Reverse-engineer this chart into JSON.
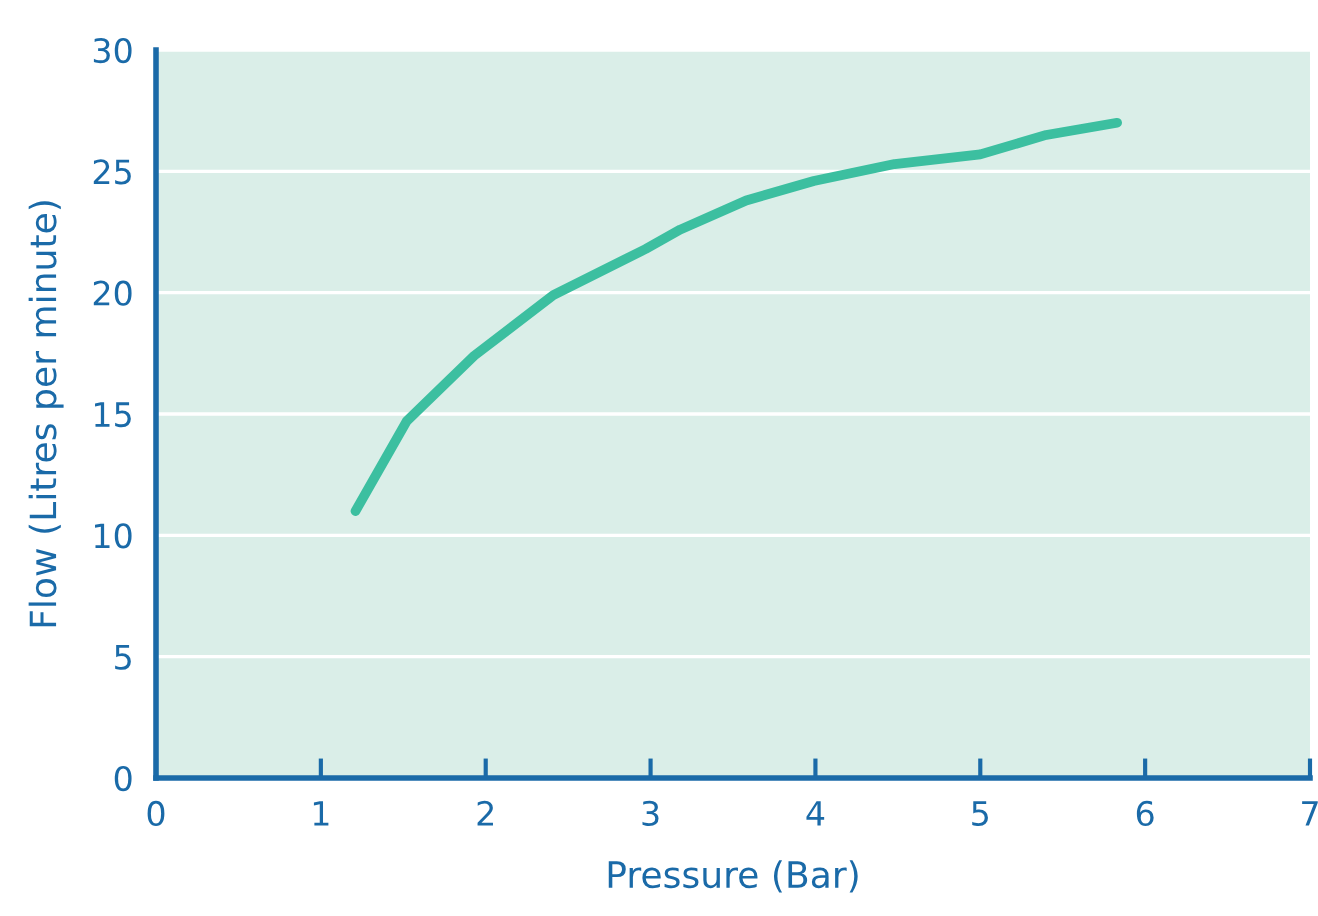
{
  "chart_data": {
    "type": "line",
    "xlabel": "Pressure (Bar)",
    "ylabel": "Flow (Litres per minute)",
    "x": [
      1.21,
      1.52,
      1.93,
      2.41,
      2.97,
      3.18,
      3.58,
      3.99,
      4.48,
      5.0,
      5.4,
      5.83
    ],
    "series": [
      {
        "color": "#3cbfa0",
        "values": [
          11.0,
          14.7,
          17.4,
          19.9,
          21.8,
          22.6,
          23.8,
          24.6,
          25.3,
          25.7,
          26.5,
          27.0
        ]
      }
    ],
    "xlim": [
      0,
      7
    ],
    "xticks": [
      0,
      1,
      2,
      3,
      4,
      5,
      6,
      7
    ],
    "ylim": [
      0,
      30
    ],
    "yticks": [
      0,
      5,
      10,
      15,
      20,
      25,
      30
    ],
    "grid": "y",
    "legend": false,
    "marker": "none",
    "line_style": "solid"
  }
}
